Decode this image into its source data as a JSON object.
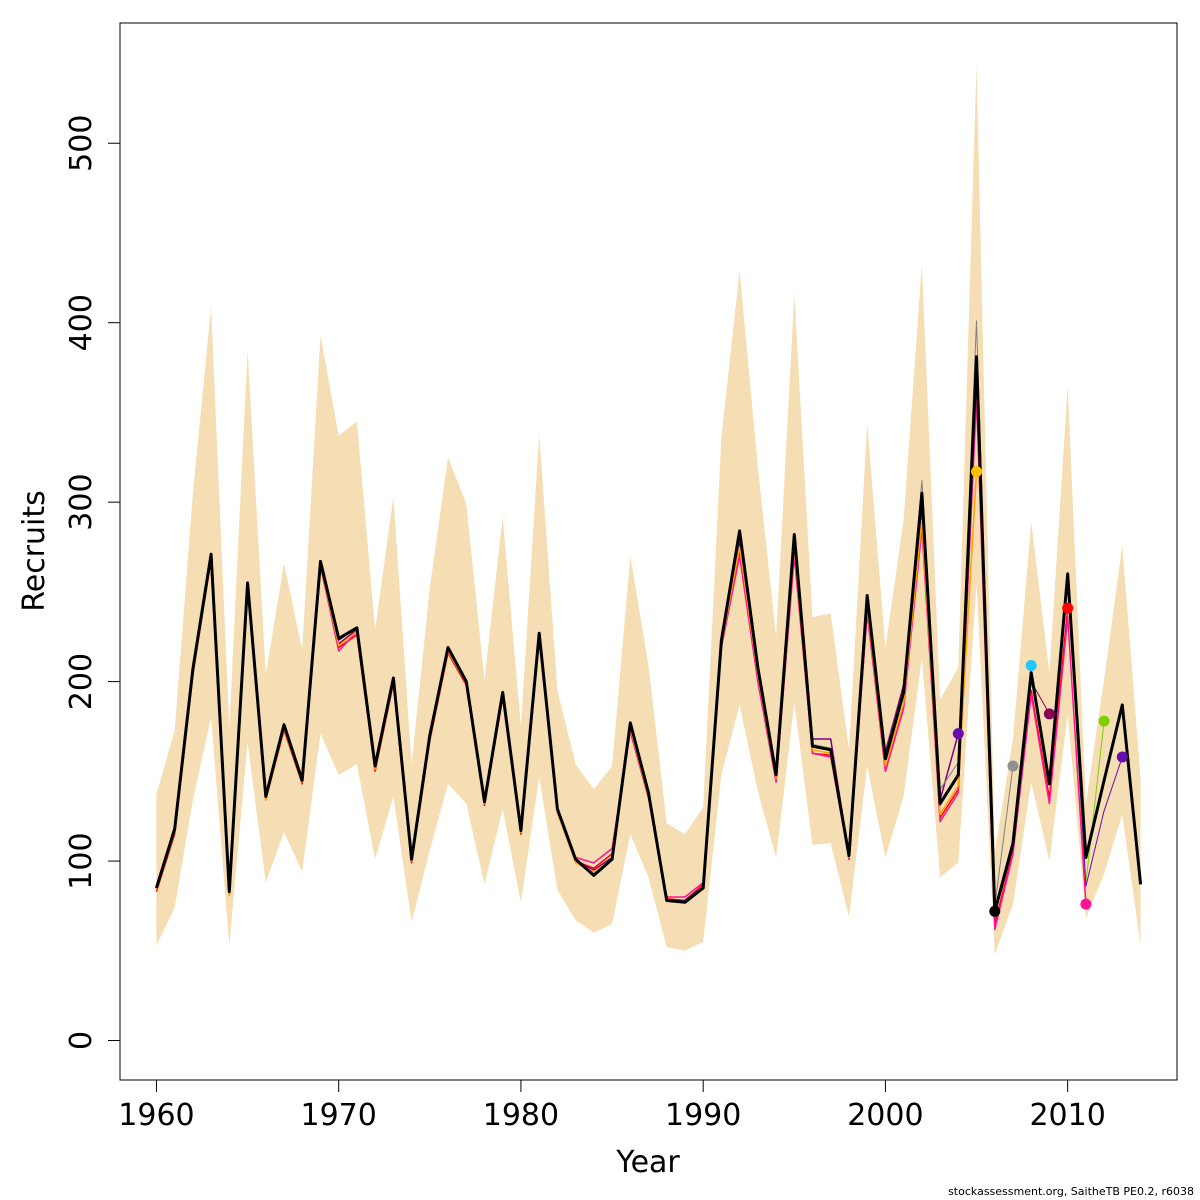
{
  "chart_data": {
    "type": "line",
    "xlabel": "Year",
    "ylabel": "Recruits",
    "xlim": [
      1958,
      2016
    ],
    "ylim": [
      -22,
      567
    ],
    "x_ticks": [
      1960,
      1970,
      1980,
      1990,
      2000,
      2010
    ],
    "y_ticks": [
      0,
      100,
      200,
      300,
      400,
      500
    ],
    "x": [
      1960,
      1961,
      1962,
      1963,
      1964,
      1965,
      1966,
      1967,
      1968,
      1969,
      1970,
      1971,
      1972,
      1973,
      1974,
      1975,
      1976,
      1977,
      1978,
      1979,
      1980,
      1981,
      1982,
      1983,
      1984,
      1985,
      1986,
      1987,
      1988,
      1989,
      1990,
      1991,
      1992,
      1993,
      1994,
      1995,
      1996,
      1997,
      1998,
      1999,
      2000,
      2001,
      2002,
      2003,
      2004,
      2005,
      2006,
      2007,
      2008,
      2009,
      2010,
      2011,
      2012,
      2013,
      2014
    ],
    "band": {
      "color": "#f5deb3",
      "lower": [
        53,
        74,
        134,
        180,
        53,
        166,
        88,
        116,
        94,
        171,
        148,
        154,
        101,
        136,
        66,
        106,
        143,
        132,
        87,
        129,
        77,
        147,
        84,
        67,
        60,
        65,
        115,
        91,
        52,
        50,
        55,
        148,
        187,
        139,
        102,
        188,
        109,
        110,
        69,
        153,
        102,
        136,
        213,
        91,
        99,
        255,
        48,
        76,
        144,
        100,
        182,
        68,
        93,
        126,
        53
      ],
      "upper": [
        137,
        173,
        305,
        409,
        174,
        385,
        204,
        266,
        218,
        393,
        337,
        345,
        229,
        303,
        154,
        252,
        325,
        299,
        201,
        292,
        175,
        338,
        195,
        154,
        140,
        153,
        270,
        209,
        121,
        115,
        130,
        336,
        429,
        320,
        225,
        416,
        236,
        238,
        162,
        344,
        219,
        290,
        433,
        190,
        208,
        544,
        105,
        168,
        289,
        205,
        365,
        132,
        201,
        276,
        146
      ]
    },
    "series": [
      {
        "color": "#000000",
        "width": 3,
        "values": [
          85,
          118,
          207,
          271,
          83,
          255,
          136,
          176,
          145,
          267,
          224,
          230,
          153,
          202,
          101,
          170,
          219,
          200,
          133,
          194,
          117,
          227,
          129,
          101,
          92,
          101,
          177,
          138,
          78,
          77,
          85,
          223,
          284,
          208,
          148,
          282,
          164,
          162,
          103,
          248,
          157,
          194,
          305,
          132,
          148,
          381,
          72,
          110,
          205,
          143,
          260,
          102,
          145,
          187,
          87
        ]
      },
      {
        "color": "#ff0000",
        "width": 1.5,
        "values": [
          83,
          115,
          204,
          268,
          81,
          252,
          134,
          173,
          143,
          264,
          219,
          226,
          150,
          199,
          99,
          167,
          216,
          198,
          131,
          191,
          115,
          224,
          127,
          100,
          96,
          104,
          173,
          136,
          79,
          78,
          87,
          220,
          273,
          202,
          145,
          273,
          160,
          159,
          101,
          240,
          150,
          186,
          288,
          124,
          140,
          362,
          65,
          105,
          195,
          135,
          241,
          null,
          null,
          null,
          null
        ]
      },
      {
        "color": "#ff1493",
        "width": 1.5,
        "values": [
          84,
          116,
          205,
          269,
          82,
          253,
          135,
          174,
          144,
          265,
          217,
          228,
          152,
          200,
          100,
          168,
          217,
          199,
          132,
          192,
          116,
          226,
          128,
          102,
          99,
          107,
          172,
          135,
          80,
          80,
          88,
          219,
          270,
          200,
          144,
          270,
          160,
          158,
          102,
          238,
          150,
          185,
          285,
          122,
          138,
          358,
          62,
          104,
          193,
          132,
          236,
          76,
          null,
          null,
          null
        ]
      },
      {
        "color": "#800080",
        "width": 1.5,
        "values": [
          84,
          116,
          206,
          270,
          82,
          253,
          135,
          175,
          144,
          266,
          221,
          229,
          152,
          201,
          100,
          169,
          218,
          200,
          133,
          193,
          117,
          226,
          128,
          100,
          95,
          102,
          175,
          137,
          78,
          78,
          86,
          222,
          277,
          205,
          147,
          277,
          168,
          168,
          103,
          244,
          161,
          198,
          294,
          134,
          171,
          null,
          null,
          null,
          null,
          null,
          null,
          null,
          null,
          null,
          null
        ]
      },
      {
        "color": "#ffa500",
        "width": 1.5,
        "values": [
          84,
          116,
          205,
          269,
          81,
          252,
          134,
          174,
          144,
          265,
          220,
          228,
          151,
          200,
          100,
          168,
          217,
          199,
          132,
          192,
          116,
          225,
          127,
          99,
          94,
          101,
          174,
          136,
          78,
          77,
          86,
          221,
          275,
          204,
          146,
          275,
          162,
          160,
          102,
          242,
          153,
          188,
          290,
          126,
          142,
          317,
          null,
          null,
          null,
          null,
          null,
          null,
          null,
          null,
          null
        ]
      },
      {
        "color": "#808080",
        "width": 1,
        "values": [
          85,
          118,
          207,
          271,
          83,
          255,
          136,
          176,
          145,
          267,
          223,
          230,
          153,
          202,
          101,
          170,
          219,
          200,
          133,
          194,
          117,
          227,
          129,
          101,
          93,
          101,
          176,
          138,
          78,
          77,
          86,
          223,
          281,
          207,
          148,
          279,
          165,
          163,
          103,
          247,
          159,
          196,
          312,
          140,
          155,
          401,
          75,
          153,
          null,
          null,
          null,
          null,
          null,
          null,
          null
        ]
      },
      {
        "color": "#00bfff",
        "width": 1,
        "values": [
          85,
          118,
          207,
          271,
          83,
          255,
          136,
          176,
          145,
          267,
          223,
          230,
          153,
          202,
          101,
          170,
          219,
          200,
          133,
          194,
          117,
          227,
          129,
          101,
          92,
          101,
          177,
          138,
          78,
          77,
          85,
          223,
          283,
          208,
          148,
          281,
          164,
          162,
          103,
          248,
          157,
          194,
          304,
          131,
          147,
          379,
          71,
          108,
          209,
          null,
          null,
          null,
          null,
          null,
          null
        ]
      },
      {
        "color": "#8b0057",
        "width": 1,
        "values": [
          85,
          118,
          207,
          271,
          83,
          255,
          136,
          176,
          145,
          267,
          223,
          230,
          153,
          202,
          101,
          170,
          219,
          200,
          133,
          194,
          117,
          227,
          129,
          101,
          92,
          101,
          177,
          138,
          78,
          77,
          85,
          223,
          283,
          208,
          148,
          281,
          164,
          162,
          103,
          248,
          157,
          194,
          304,
          131,
          147,
          378,
          70,
          107,
          200,
          182,
          null,
          null,
          null,
          null,
          null
        ]
      },
      {
        "color": "#7fd000",
        "width": 1,
        "values": [
          85,
          118,
          207,
          271,
          83,
          255,
          136,
          176,
          145,
          267,
          224,
          230,
          153,
          202,
          101,
          170,
          219,
          200,
          133,
          194,
          117,
          227,
          129,
          101,
          92,
          101,
          177,
          138,
          78,
          77,
          85,
          223,
          284,
          208,
          148,
          282,
          164,
          162,
          103,
          248,
          157,
          194,
          305,
          132,
          148,
          381,
          72,
          110,
          205,
          143,
          258,
          88,
          178,
          null,
          null
        ]
      },
      {
        "color": "#6a0dad",
        "width": 1,
        "values": [
          85,
          118,
          207,
          271,
          83,
          255,
          136,
          176,
          145,
          267,
          224,
          230,
          153,
          202,
          101,
          170,
          219,
          200,
          133,
          194,
          117,
          227,
          129,
          101,
          92,
          101,
          177,
          138,
          78,
          77,
          85,
          223,
          284,
          208,
          148,
          282,
          164,
          162,
          103,
          248,
          157,
          194,
          305,
          132,
          148,
          381,
          72,
          110,
          205,
          143,
          258,
          86,
          128,
          158,
          null
        ]
      }
    ],
    "end_points": [
      {
        "x": 2004,
        "y": 171,
        "color": "#6a0dad"
      },
      {
        "x": 2005,
        "y": 317,
        "color": "#ffc000"
      },
      {
        "x": 2006,
        "y": 72,
        "color": "#000000"
      },
      {
        "x": 2007,
        "y": 153,
        "color": "#909090"
      },
      {
        "x": 2008,
        "y": 209,
        "color": "#1ec8ff"
      },
      {
        "x": 2009,
        "y": 182,
        "color": "#8b0057"
      },
      {
        "x": 2010,
        "y": 241,
        "color": "#ff0000"
      },
      {
        "x": 2011,
        "y": 76,
        "color": "#ff1493"
      },
      {
        "x": 2012,
        "y": 178,
        "color": "#7fd000"
      },
      {
        "x": 2013,
        "y": 158,
        "color": "#6a0dad"
      }
    ]
  },
  "footer": {
    "credit": "stockassessment.org, SaitheTB  PE0.2, r6038"
  }
}
